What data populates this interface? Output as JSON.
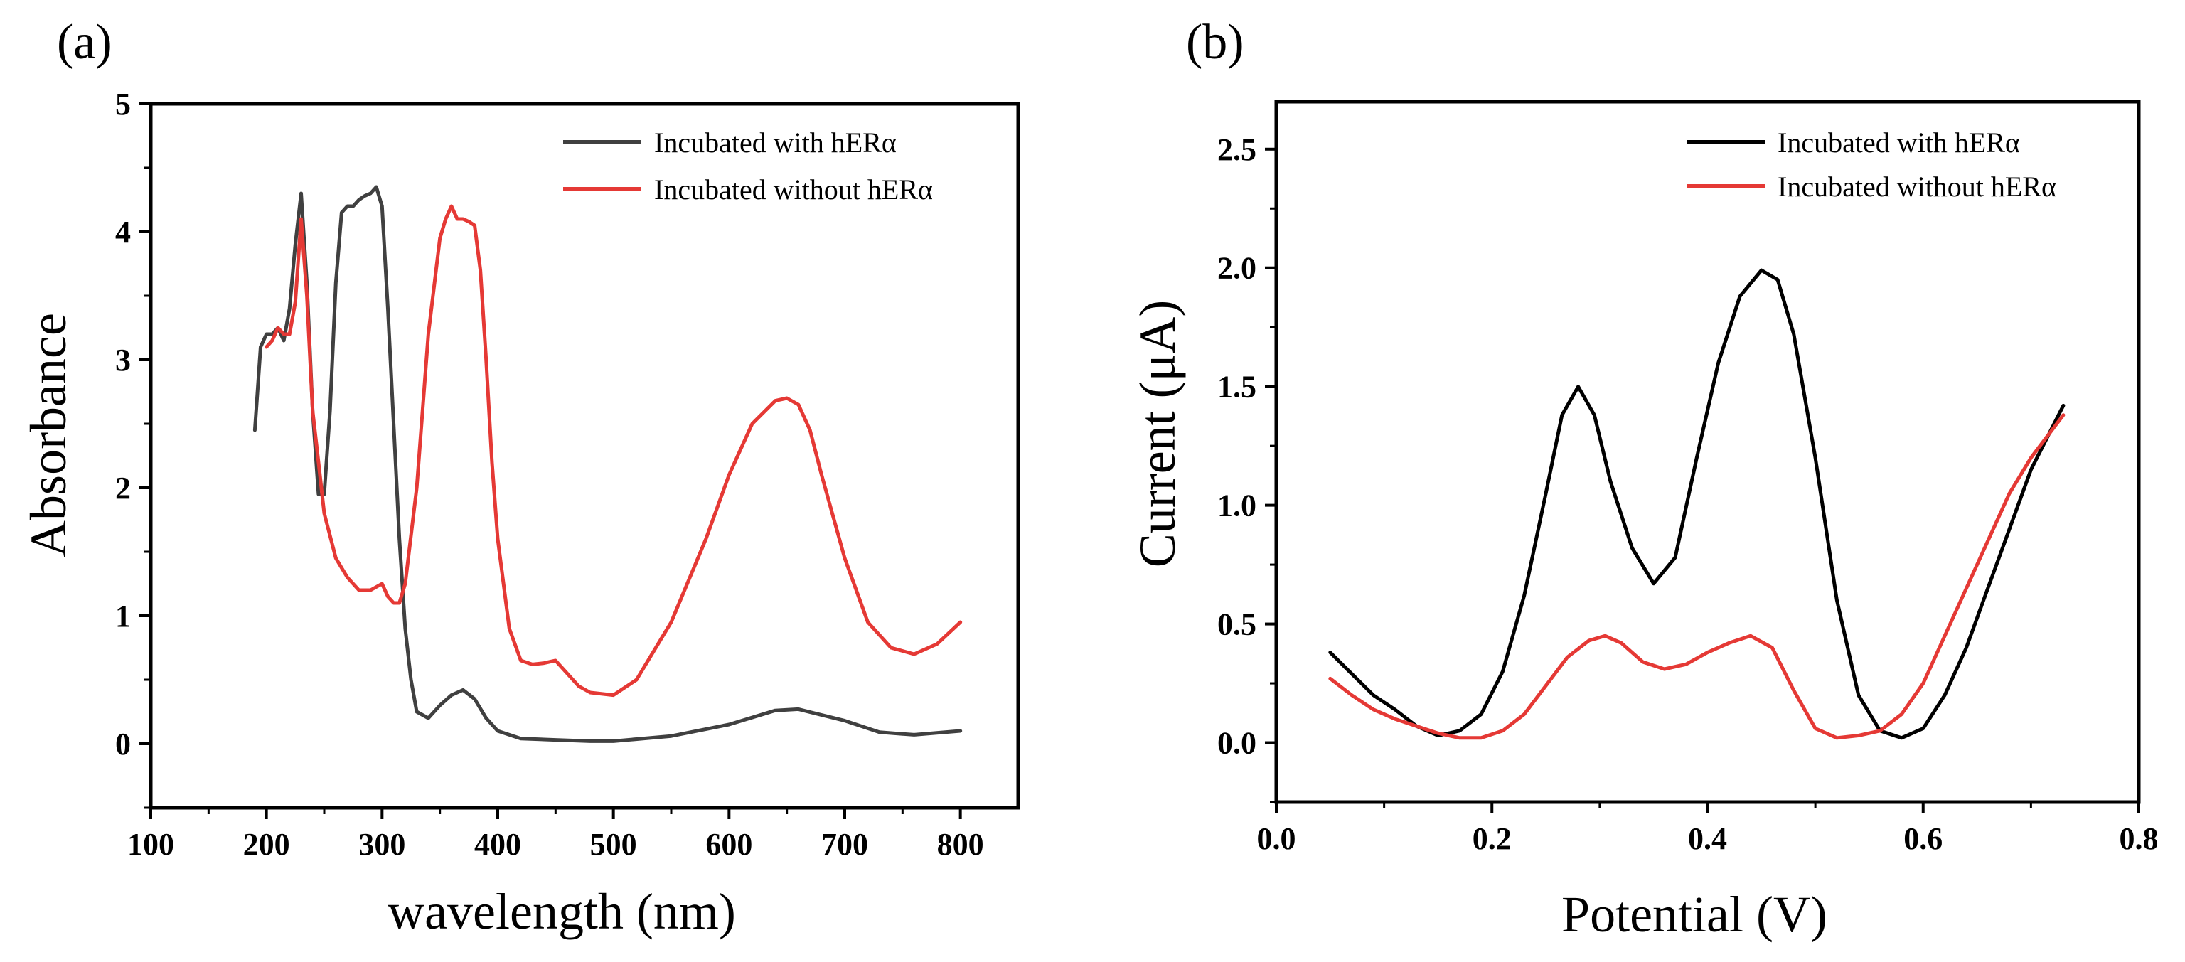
{
  "chart_data": [
    {
      "panel_label": "(a)",
      "type": "line",
      "title": "",
      "xlabel": "wavelength (nm)",
      "ylabel": "Absorbance",
      "xlim": [
        100,
        850
      ],
      "ylim": [
        -0.5,
        5
      ],
      "xticks": [
        100,
        200,
        300,
        400,
        500,
        600,
        700,
        800
      ],
      "yticks": [
        0,
        1,
        2,
        3,
        4,
        5
      ],
      "xtick_labels": [
        "100",
        "200",
        "300",
        "400",
        "500",
        "600",
        "700",
        "800"
      ],
      "ytick_labels": [
        "0",
        "1",
        "2",
        "3",
        "4",
        "5"
      ],
      "grid": false,
      "legend_position": "top-right",
      "series": [
        {
          "name": "Incubated with hERα",
          "color": "#404040",
          "x": [
            190,
            195,
            200,
            205,
            210,
            215,
            220,
            225,
            230,
            235,
            240,
            245,
            250,
            255,
            260,
            265,
            270,
            275,
            280,
            285,
            290,
            295,
            300,
            305,
            310,
            315,
            320,
            325,
            330,
            340,
            350,
            360,
            370,
            380,
            390,
            400,
            420,
            450,
            480,
            500,
            550,
            600,
            640,
            660,
            700,
            730,
            760,
            800
          ],
          "y": [
            2.45,
            3.1,
            3.2,
            3.2,
            3.25,
            3.15,
            3.4,
            3.9,
            4.3,
            3.6,
            2.6,
            1.95,
            1.95,
            2.6,
            3.6,
            4.15,
            4.2,
            4.2,
            4.25,
            4.28,
            4.3,
            4.35,
            4.2,
            3.4,
            2.5,
            1.6,
            0.9,
            0.5,
            0.25,
            0.2,
            0.3,
            0.38,
            0.42,
            0.35,
            0.2,
            0.1,
            0.04,
            0.03,
            0.02,
            0.02,
            0.06,
            0.15,
            0.26,
            0.27,
            0.18,
            0.09,
            0.07,
            0.1
          ]
        },
        {
          "name": "Incubated without hERα",
          "color": "#e53935",
          "x": [
            200,
            205,
            210,
            215,
            220,
            225,
            230,
            235,
            240,
            245,
            250,
            260,
            270,
            280,
            290,
            300,
            305,
            310,
            315,
            320,
            330,
            340,
            350,
            355,
            360,
            365,
            370,
            375,
            380,
            385,
            390,
            395,
            400,
            410,
            420,
            430,
            440,
            450,
            460,
            470,
            480,
            500,
            520,
            550,
            580,
            600,
            620,
            640,
            650,
            660,
            670,
            680,
            700,
            720,
            740,
            760,
            780,
            800
          ],
          "y": [
            3.1,
            3.15,
            3.25,
            3.2,
            3.2,
            3.45,
            4.1,
            3.5,
            2.6,
            2.2,
            1.8,
            1.45,
            1.3,
            1.2,
            1.2,
            1.25,
            1.15,
            1.1,
            1.1,
            1.25,
            2.0,
            3.2,
            3.95,
            4.1,
            4.2,
            4.1,
            4.1,
            4.08,
            4.05,
            3.7,
            3.0,
            2.2,
            1.6,
            0.9,
            0.65,
            0.62,
            0.63,
            0.65,
            0.55,
            0.45,
            0.4,
            0.38,
            0.5,
            0.95,
            1.6,
            2.1,
            2.5,
            2.68,
            2.7,
            2.65,
            2.45,
            2.1,
            1.45,
            0.95,
            0.75,
            0.7,
            0.78,
            0.95
          ]
        }
      ]
    },
    {
      "panel_label": "(b)",
      "type": "line",
      "title": "",
      "xlabel": "Potential (V)",
      "ylabel": "Current (μA)",
      "xlim": [
        0.0,
        0.8
      ],
      "ylim": [
        -0.25,
        2.7
      ],
      "xticks": [
        0.0,
        0.2,
        0.4,
        0.6,
        0.8
      ],
      "yticks": [
        0.0,
        0.5,
        1.0,
        1.5,
        2.0,
        2.5
      ],
      "xtick_labels": [
        "0.0",
        "0.2",
        "0.4",
        "0.6",
        "0.8"
      ],
      "ytick_labels": [
        "0.0",
        "0.5",
        "1.0",
        "1.5",
        "2.0",
        "2.5"
      ],
      "grid": false,
      "legend_position": "top-right",
      "series": [
        {
          "name": "Incubated with hERα",
          "color": "#000000",
          "x": [
            0.05,
            0.07,
            0.09,
            0.11,
            0.13,
            0.15,
            0.17,
            0.19,
            0.21,
            0.23,
            0.25,
            0.265,
            0.28,
            0.295,
            0.31,
            0.33,
            0.35,
            0.37,
            0.39,
            0.41,
            0.43,
            0.45,
            0.465,
            0.48,
            0.5,
            0.52,
            0.54,
            0.56,
            0.58,
            0.6,
            0.62,
            0.64,
            0.66,
            0.68,
            0.7,
            0.73
          ],
          "y": [
            0.38,
            0.29,
            0.2,
            0.14,
            0.07,
            0.03,
            0.05,
            0.12,
            0.3,
            0.62,
            1.05,
            1.38,
            1.5,
            1.38,
            1.1,
            0.82,
            0.67,
            0.78,
            1.2,
            1.6,
            1.88,
            1.99,
            1.95,
            1.72,
            1.2,
            0.6,
            0.2,
            0.05,
            0.02,
            0.06,
            0.2,
            0.4,
            0.65,
            0.9,
            1.15,
            1.42
          ]
        },
        {
          "name": "Incubated without hERα",
          "color": "#e53935",
          "x": [
            0.05,
            0.07,
            0.09,
            0.11,
            0.13,
            0.15,
            0.17,
            0.19,
            0.21,
            0.23,
            0.25,
            0.27,
            0.29,
            0.305,
            0.32,
            0.34,
            0.36,
            0.38,
            0.4,
            0.42,
            0.44,
            0.46,
            0.48,
            0.5,
            0.52,
            0.54,
            0.56,
            0.58,
            0.6,
            0.62,
            0.65,
            0.68,
            0.7,
            0.73
          ],
          "y": [
            0.27,
            0.2,
            0.14,
            0.1,
            0.07,
            0.04,
            0.02,
            0.02,
            0.05,
            0.12,
            0.24,
            0.36,
            0.43,
            0.45,
            0.42,
            0.34,
            0.31,
            0.33,
            0.38,
            0.42,
            0.45,
            0.4,
            0.22,
            0.06,
            0.02,
            0.03,
            0.05,
            0.12,
            0.25,
            0.45,
            0.75,
            1.05,
            1.2,
            1.38
          ]
        }
      ]
    }
  ]
}
